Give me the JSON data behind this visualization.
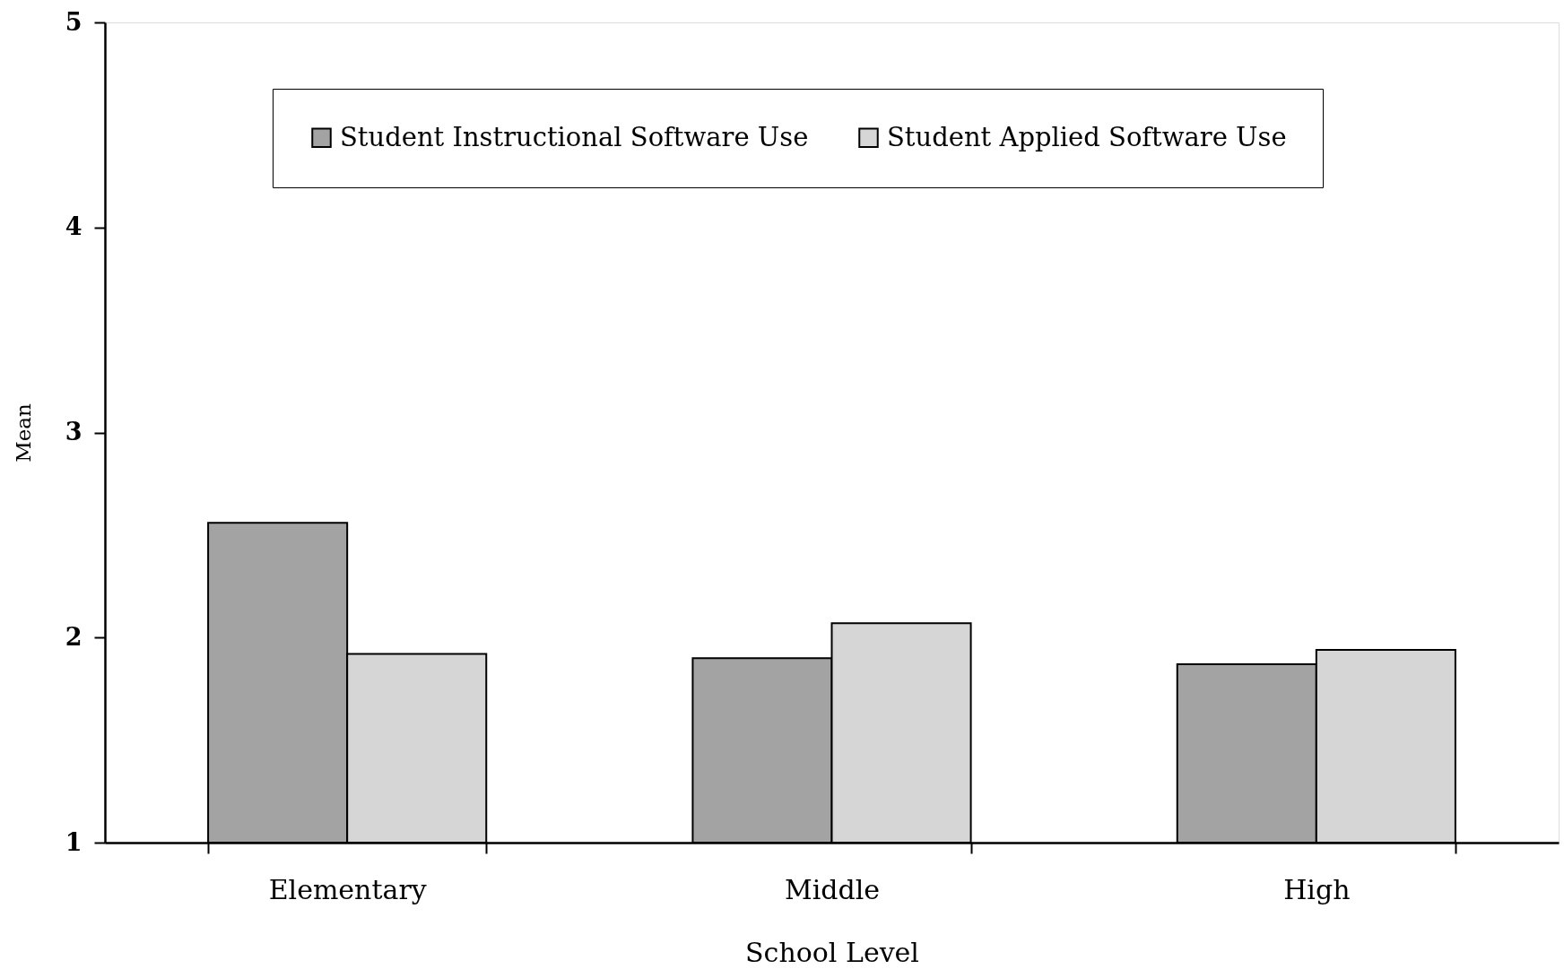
{
  "chart_data": {
    "type": "bar",
    "xlabel": "School Level",
    "ylabel": "Mean",
    "categories": [
      "Elementary",
      "Middle",
      "High"
    ],
    "series": [
      {
        "name": "Student Instructional Software Use",
        "color": "#a3a3a3",
        "values": [
          2.56,
          1.9,
          1.87
        ]
      },
      {
        "name": "Student Applied Software Use",
        "color": "#d6d6d6",
        "values": [
          1.92,
          2.07,
          1.94
        ]
      }
    ],
    "ylim": [
      1,
      5
    ],
    "yticks": [
      1,
      2,
      3,
      4,
      5
    ],
    "legend": "top"
  }
}
